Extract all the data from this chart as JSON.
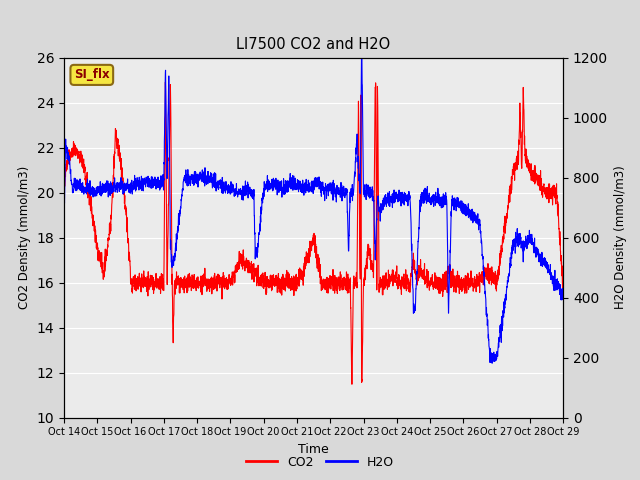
{
  "title": "LI7500 CO2 and H2O",
  "xlabel": "Time",
  "ylabel_left": "CO2 Density (mmol/m3)",
  "ylabel_right": "H2O Density (mmol/m3)",
  "ylim_left": [
    10,
    26
  ],
  "ylim_right": [
    0,
    1200
  ],
  "yticks_left": [
    10,
    12,
    14,
    16,
    18,
    20,
    22,
    24,
    26
  ],
  "yticks_right": [
    0,
    200,
    400,
    600,
    800,
    1000,
    1200
  ],
  "xtick_labels": [
    "Oct 14",
    "Oct 15",
    "Oct 16",
    "Oct 17",
    "Oct 18",
    "Oct 19",
    "Oct 20",
    "Oct 21",
    "Oct 22",
    "Oct 23",
    "Oct 24",
    "Oct 25",
    "Oct 26",
    "Oct 27",
    "Oct 28",
    "Oct 29"
  ],
  "legend_labels": [
    "CO2",
    "H2O"
  ],
  "co2_color": "red",
  "h2o_color": "blue",
  "background_color": "#d9d9d9",
  "axes_bg_color": "#ebebeb",
  "annotation_text": "SI_flx",
  "annotation_bg": "#f5e642",
  "annotation_border": "#8b6914",
  "grid_color": "white",
  "figsize": [
    6.4,
    4.8
  ],
  "dpi": 100
}
